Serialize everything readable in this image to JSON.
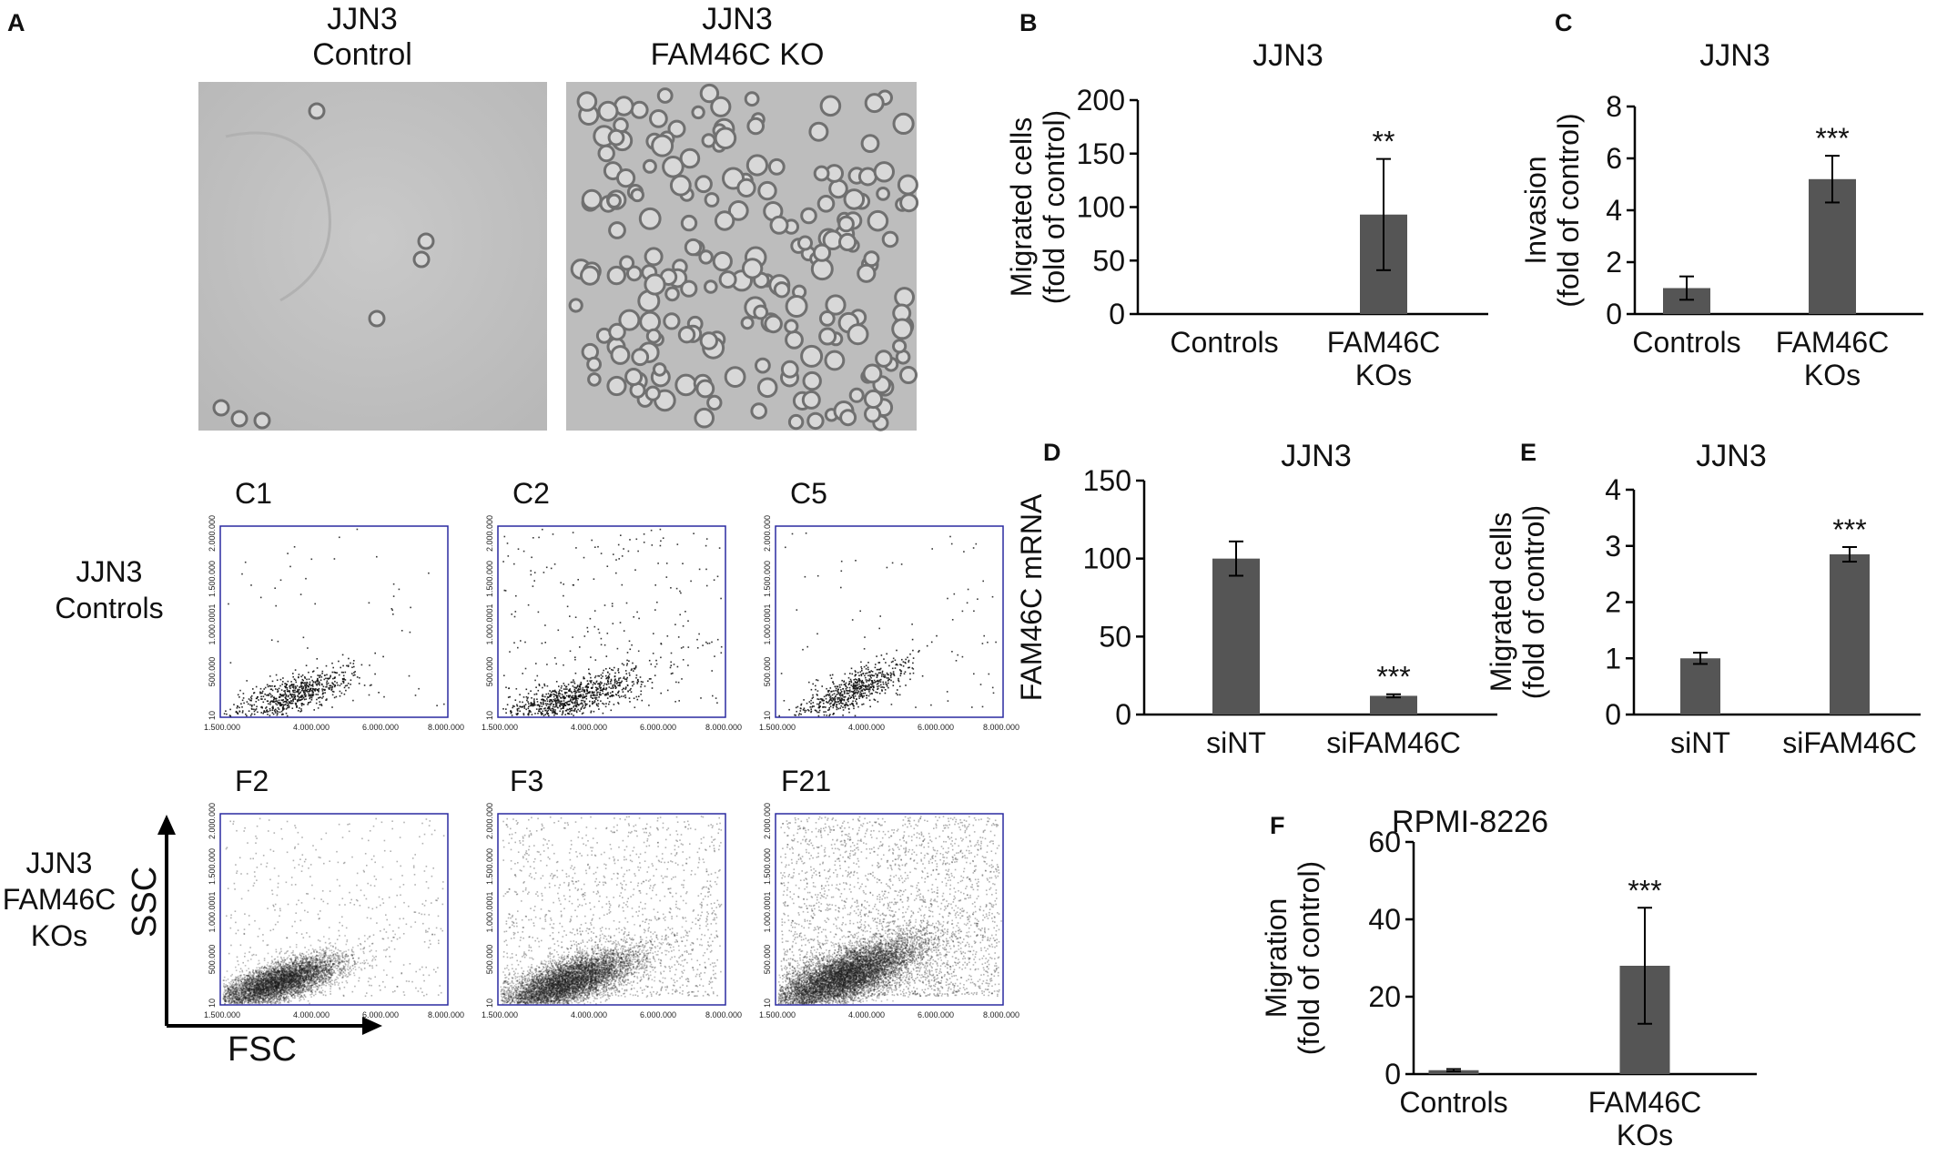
{
  "panel_letters": [
    "A",
    "B",
    "C",
    "D",
    "E",
    "F"
  ],
  "panelA": {
    "micrographs": [
      {
        "title_line1": "JJN3",
        "title_line2": "Control"
      },
      {
        "title_line1": "JJN3",
        "title_line2": "FAM46C KO"
      }
    ],
    "flow": {
      "row_labels": [
        {
          "line1": "JJN3",
          "line2": "Controls"
        },
        {
          "line1": "JJN3",
          "line2": "FAM46C",
          "line3": "KOs"
        }
      ],
      "plot_names": [
        "C1",
        "C2",
        "C5",
        "F2",
        "F3",
        "F21"
      ],
      "x_ticks": [
        "1.500.000",
        "4.000.000",
        "6.000.000",
        "8.000.000"
      ],
      "y_ticks": [
        "10",
        "500.000",
        "1.000.0001",
        "1.500.000",
        "2.000.000"
      ],
      "axis_x_label": "FSC",
      "axis_y_label": "SSC"
    }
  },
  "chart_data": [
    {
      "panel": "B",
      "type": "bar",
      "title": "JJN3",
      "ylabel_line1": "Migrated cells",
      "ylabel_line2": "(fold of control)",
      "categories": [
        [
          "Controls"
        ],
        [
          "FAM46C",
          "KOs"
        ]
      ],
      "values": [
        0,
        93
      ],
      "errors": [
        0,
        52
      ],
      "significance": [
        "",
        "**"
      ],
      "ylim": [
        0,
        200
      ],
      "yticks": [
        0,
        50,
        100,
        150,
        200
      ]
    },
    {
      "panel": "C",
      "type": "bar",
      "title": "JJN3",
      "ylabel_line1": "Invasion",
      "ylabel_line2": "(fold of control)",
      "categories": [
        [
          "Controls"
        ],
        [
          "FAM46C",
          "KOs"
        ]
      ],
      "values": [
        1.0,
        5.2
      ],
      "errors": [
        0.45,
        0.9
      ],
      "significance": [
        "",
        "***"
      ],
      "ylim": [
        0,
        8
      ],
      "yticks": [
        0,
        2,
        4,
        6,
        8
      ]
    },
    {
      "panel": "D",
      "type": "bar",
      "title": "JJN3",
      "ylabel_line1": "FAM46C mRNA",
      "ylabel_line2": "",
      "categories": [
        [
          "siNT"
        ],
        [
          "siFAM46C"
        ]
      ],
      "values": [
        100,
        12
      ],
      "errors": [
        11,
        1
      ],
      "significance": [
        "",
        "***"
      ],
      "ylim": [
        0,
        150
      ],
      "yticks": [
        0,
        50,
        100,
        150
      ]
    },
    {
      "panel": "E",
      "type": "bar",
      "title": "JJN3",
      "ylabel_line1": "Migrated cells",
      "ylabel_line2": "(fold of control)",
      "categories": [
        [
          "siNT"
        ],
        [
          "siFAM46C"
        ]
      ],
      "values": [
        1.0,
        2.85
      ],
      "errors": [
        0.1,
        0.13
      ],
      "significance": [
        "",
        "***"
      ],
      "ylim": [
        0,
        4
      ],
      "yticks": [
        0,
        1,
        2,
        3,
        4
      ]
    },
    {
      "panel": "F",
      "type": "bar",
      "title": "RPMI-8226",
      "ylabel_line1": "Migration",
      "ylabel_line2": "(fold of control)",
      "categories": [
        [
          "Controls"
        ],
        [
          "FAM46C",
          "KOs"
        ]
      ],
      "values": [
        1,
        28
      ],
      "errors": [
        0.3,
        15
      ],
      "significance": [
        "",
        "***"
      ],
      "ylim": [
        0,
        60
      ],
      "yticks": [
        0,
        20,
        40,
        60
      ]
    }
  ]
}
